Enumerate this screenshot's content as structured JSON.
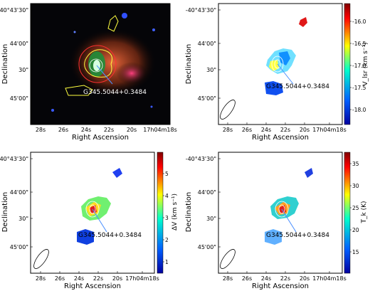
{
  "chart_data": [
    {
      "type": "heatmap",
      "panel": "top-left",
      "xlabel": "Right Ascension",
      "ylabel": "Declination",
      "xticks": [
        "28s",
        "26s",
        "24s",
        "22s",
        "20s",
        "17h04m18s"
      ],
      "yticks": [
        "-40°43'30\"",
        "44'00\"",
        "30\"",
        "45'00\""
      ],
      "annotation": "G345.5044+0.3484",
      "background": "composite color image",
      "colorbar": null
    },
    {
      "type": "heatmap",
      "panel": "top-right",
      "xlabel": "Right Ascension",
      "ylabel": "Declination",
      "xticks": [
        "28s",
        "26s",
        "24s",
        "22s",
        "20s",
        "17h04m18s"
      ],
      "yticks": [
        "-40°43'30\"",
        "44'00\"",
        "30\"",
        "45'00\""
      ],
      "annotation": "G345.5044+0.3484",
      "colorbar": {
        "label": "V_lsr (km s⁻¹)",
        "ticks": [
          "-16.0",
          "-16.5",
          "-17.0",
          "-17.5",
          "-18.0"
        ],
        "range": [
          -18.2,
          -15.8
        ],
        "colormap": "jet",
        "reversed": true
      }
    },
    {
      "type": "heatmap",
      "panel": "bottom-left",
      "xlabel": "Right Ascension",
      "ylabel": "Declination",
      "xticks": [
        "28s",
        "26s",
        "24s",
        "22s",
        "20s",
        "17h04m18s"
      ],
      "yticks": [
        "-40°43'30\"",
        "44'00\"",
        "30\"",
        "45'00\""
      ],
      "annotation": "G345.5044+0.3484",
      "colorbar": {
        "label": "ΔV (km s⁻¹)",
        "ticks": [
          "5",
          "4",
          "3",
          "2",
          "1"
        ],
        "range": [
          0.9,
          5.9
        ],
        "colormap": "jet",
        "reversed": false
      }
    },
    {
      "type": "heatmap",
      "panel": "bottom-right",
      "xlabel": "Right Ascension",
      "ylabel": "Declination",
      "xticks": [
        "28s",
        "26s",
        "24s",
        "22s",
        "20s",
        "17h04m18s"
      ],
      "yticks": [
        "-40°43'30\"",
        "44'00\"",
        "30\"",
        "45'00\""
      ],
      "annotation": "G345.5044+0.3484",
      "colorbar": {
        "label": "T_k (K)",
        "ticks": [
          "35",
          "30",
          "25",
          "20",
          "15"
        ],
        "range": [
          13,
          37
        ],
        "colormap": "jet",
        "reversed": false
      }
    }
  ]
}
